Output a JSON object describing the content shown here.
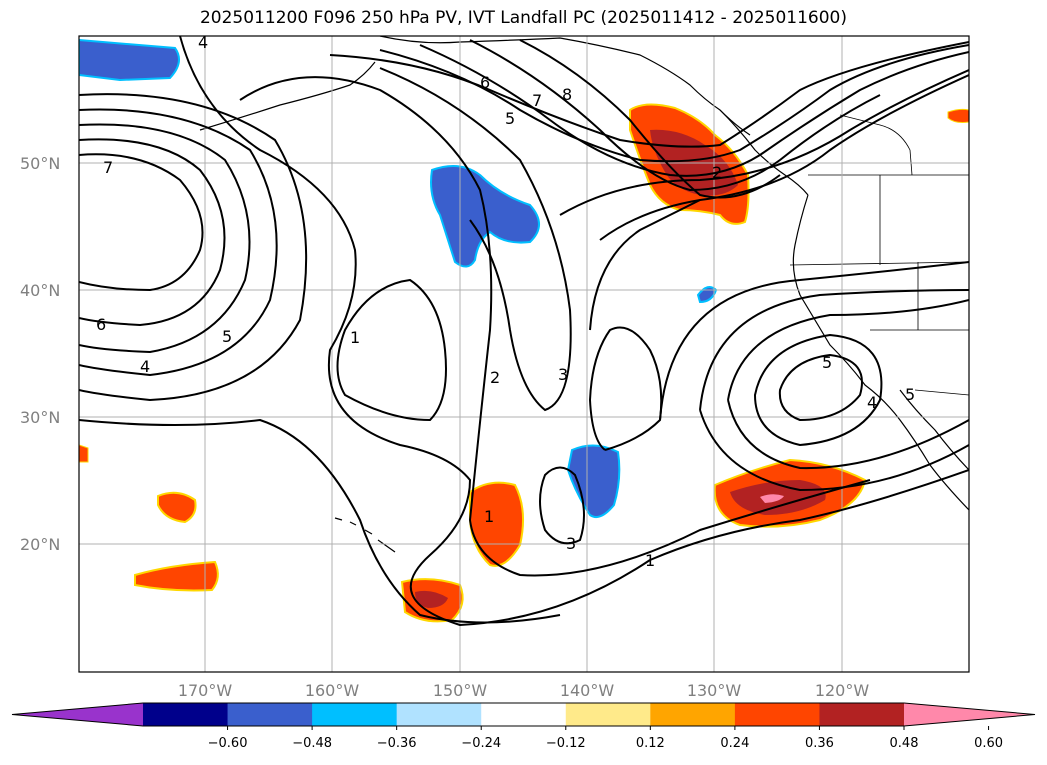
{
  "title": "2025011200 F096 250 hPa PV, IVT Landfall PC (2025011412 - 2025011600)",
  "lat_labels": [
    "50°N",
    "40°N",
    "30°N",
    "20°N"
  ],
  "lon_labels": [
    "170°W",
    "160°W",
    "150°W",
    "140°W",
    "130°W",
    "120°W"
  ],
  "colorbar": {
    "ticks": [
      "−0.60",
      "−0.48",
      "−0.36",
      "−0.24",
      "−0.12",
      "0.12",
      "0.24",
      "0.36",
      "0.48",
      "0.60"
    ],
    "colors": [
      "#9933cc",
      "#00008b",
      "#3a5fcd",
      "#00bfff",
      "#b0e2ff",
      "#ffffff",
      "#ffea8a",
      "#ffa500",
      "#ff4500",
      "#b22222",
      "#ff88aa"
    ]
  },
  "contour_labels": [
    "1",
    "1",
    "1",
    "2",
    "2",
    "3",
    "3",
    "4",
    "4",
    "4",
    "5",
    "5",
    "5",
    "5",
    "6",
    "6",
    "7",
    "7",
    "8"
  ],
  "colors": {
    "positive_high": "#b22222",
    "positive_mid": "#ff4500",
    "negative": "#3a5fcd"
  }
}
